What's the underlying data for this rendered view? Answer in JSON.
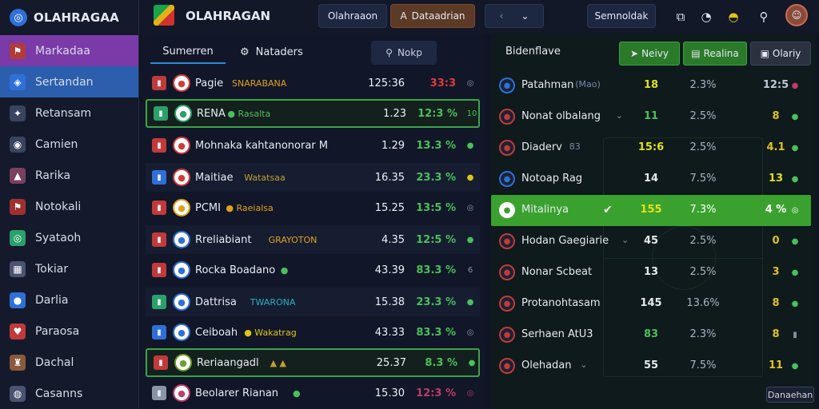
{
  "sidebar": {
    "brand": "OLAHRAGAA",
    "items": [
      {
        "label": "Markadaa",
        "icon": "flag-icon",
        "glyph": "⚑",
        "color": "#b33a3a"
      },
      {
        "label": "Sertandan",
        "icon": "shield-icon",
        "glyph": "◈",
        "color": "#2f6fd8"
      },
      {
        "label": "Retansam",
        "icon": "person-icon",
        "glyph": "✦",
        "color": "#3a4460"
      },
      {
        "label": "Camien",
        "icon": "ball-icon",
        "glyph": "◉",
        "color": "#3a4460"
      },
      {
        "label": "Rarika",
        "icon": "cap-icon",
        "glyph": "▲",
        "color": "#7a4060"
      },
      {
        "label": "Notokali",
        "icon": "flag-icon",
        "glyph": "⚑",
        "color": "#a0302f"
      },
      {
        "label": "Syataoh",
        "icon": "target-icon",
        "glyph": "◎",
        "color": "#2aa06a"
      },
      {
        "label": "Tokiar",
        "icon": "calendar-icon",
        "glyph": "▦",
        "color": "#4a5470"
      },
      {
        "label": "Darlia",
        "icon": "globe-icon",
        "glyph": "●",
        "color": "#2f6fd8"
      },
      {
        "label": "Paraosa",
        "icon": "heart-icon",
        "glyph": "♥",
        "color": "#c03a3a"
      },
      {
        "label": "Dachal",
        "icon": "trophy-icon",
        "glyph": "♜",
        "color": "#8a5a3a"
      },
      {
        "label": "Casanns",
        "icon": "coin-icon",
        "glyph": "◍",
        "color": "#4a5470"
      }
    ]
  },
  "topbar": {
    "title": "OLAHRAGAN",
    "btn_1": "Olahraaon",
    "btn_2_icon": "A",
    "btn_2": "Dataadrian",
    "btn_3": "Semnoldak"
  },
  "left_panel": {
    "tab_active": "Sumerren",
    "tab_2": "Nataders",
    "search_label": "Nokp",
    "rows": [
      {
        "flag": "#c03a3a",
        "badge": "#d23b3b",
        "name": "Pagie",
        "tag": "SNARABANA",
        "tag_color": "#e0a21a",
        "odds": "125:36",
        "pct": "33:3",
        "pct_color": "#e03a3a",
        "stat": "◎",
        "stat_color": "#8a94a6",
        "style": ""
      },
      {
        "flag": "#2aa06a",
        "badge": "#2aa06a",
        "name": "RENA",
        "tag": "● Rasalta",
        "tag_color": "#4ac05a",
        "odds": "1.23",
        "pct": "12:3 %",
        "pct_color": "#4ac05a",
        "stat": "10",
        "stat_color": "#4ac05a",
        "style": "hl"
      },
      {
        "flag": "#c03a3a",
        "badge": "#d23b3b",
        "name": "Mohnaka kahtanonorar M",
        "tag": "",
        "tag_color": "#fff",
        "odds": "1.29",
        "pct": "13.3 %",
        "pct_color": "#4ac05a",
        "stat": "●",
        "stat_color": "#4ac05a",
        "style": ""
      },
      {
        "flag": "#2f6fd8",
        "badge": "#d23b3b",
        "name": "Maitiae",
        "tag": "Watatsaa",
        "tag_color": "#c0a030",
        "odds": "16.35",
        "pct": "23.3 %",
        "pct_color": "#4ac05a",
        "stat": "●",
        "stat_color": "#e0c21a",
        "style": "alt"
      },
      {
        "flag": "#c03a3a",
        "badge": "#e0a21a",
        "name": "PCMI",
        "tag": "● Raeialsa",
        "tag_color": "#e0a21a",
        "odds": "15.25",
        "pct": "13:5 %",
        "pct_color": "#4ac05a",
        "stat": "◎",
        "stat_color": "#8a94a6",
        "style": ""
      },
      {
        "flag": "#c03a3a",
        "badge": "#2f6fd8",
        "name": "Rreliabiant",
        "tag": "GRAYOTON",
        "tag_color": "#e0a21a",
        "odds": "4.35",
        "pct": "12:5 %",
        "pct_color": "#4ac05a",
        "stat": "●",
        "stat_color": "#4ac05a",
        "style": "alt"
      },
      {
        "flag": "#c03a3a",
        "badge": "#2f6fd8",
        "name": "Rocka Boadano",
        "tag": "●",
        "tag_color": "#4ac05a",
        "odds": "43.39",
        "pct": "83.3 %",
        "pct_color": "#4ac05a",
        "stat": "6",
        "stat_color": "#8a94a6",
        "style": ""
      },
      {
        "flag": "#2aa06a",
        "badge": "#2f6fd8",
        "name": "Dattrisa",
        "tag": "TWARONA",
        "tag_color": "#2ab0c0",
        "odds": "15.38",
        "pct": "23.3 %",
        "pct_color": "#4ac05a",
        "stat": "●",
        "stat_color": "#4ac05a",
        "style": "alt"
      },
      {
        "flag": "#2f6fd8",
        "badge": "#2f6fd8",
        "name": "Ceiboah",
        "tag": "● Wakatrag",
        "tag_color": "#e0c21a",
        "odds": "43.33",
        "pct": "83.3 %",
        "pct_color": "#4ac05a",
        "stat": "◎",
        "stat_color": "#8a94a6",
        "style": ""
      },
      {
        "flag": "#c03a3a",
        "badge": "#6aa02a",
        "name": "Reriaangadl",
        "tag": "▲ ▲",
        "tag_color": "#c0a030",
        "odds": "25.37",
        "pct": "8.3 %",
        "pct_color": "#4ac05a",
        "stat": "●",
        "stat_color": "#4ac05a",
        "style": "hl"
      },
      {
        "flag": "#8a94a6",
        "badge": "#c03a6a",
        "name": "Beolarer Rianan",
        "tag": "●",
        "tag_color": "#4ac05a",
        "odds": "15.30",
        "pct": "12:3 %",
        "pct_color": "#c03a6a",
        "stat": "◎",
        "stat_color": "#c03a6a",
        "style": ""
      }
    ]
  },
  "right_panel": {
    "title": "Bidenflave",
    "btn_1": "Neivy",
    "btn_2": "Realina",
    "btn_3": "Olariy",
    "rows": [
      {
        "icon": "#2f6fd8",
        "name": "Patahman",
        "sub": "(Mao)",
        "v1": "18",
        "v1_color": "#e0e21a",
        "v2": "2.3%",
        "v3": "12:5",
        "v3_color": "#c0c8d4",
        "st": "●",
        "st_color": "#c03a6a",
        "chev": false,
        "sel": false
      },
      {
        "icon": "#c03a3a",
        "name": "Nonat olbalang",
        "sub": "",
        "v1": "11",
        "v1_color": "#4ac05a",
        "v2": "2.5%",
        "v3": "8",
        "v3_color": "#e0c21a",
        "st": "●",
        "st_color": "#4ac05a",
        "chev": true,
        "sel": false
      },
      {
        "icon": "#c03a3a",
        "name": "Diaderv",
        "sub": "83",
        "v1": "15:6",
        "v1_color": "#e0e21a",
        "v2": "2.5%",
        "v3": "4.1",
        "v3_color": "#e0c21a",
        "st": "●",
        "st_color": "#4ac05a",
        "chev": false,
        "sel": false
      },
      {
        "icon": "#2f6fd8",
        "name": "Notoap Rag",
        "sub": "",
        "v1": "14",
        "v1_color": "#e6eaf0",
        "v2": "7.5%",
        "v3": "13",
        "v3_color": "#e0e21a",
        "st": "●",
        "st_color": "#4ac05a",
        "chev": false,
        "sel": false
      },
      {
        "icon": "#ffffff",
        "name": "Mitalinya",
        "sub": "",
        "v1": "155",
        "v1_color": "#e0e21a",
        "v2": "7.3%",
        "v3": "4 %",
        "v3_color": "#ffffff",
        "st": "◎",
        "st_color": "#ffffff",
        "chev": false,
        "sel": true
      },
      {
        "icon": "#c03a3a",
        "name": "Hodan Gaegiarie",
        "sub": "",
        "v1": "45",
        "v1_color": "#e6eaf0",
        "v2": "2.5%",
        "v3": "0",
        "v3_color": "#e0c21a",
        "st": "●",
        "st_color": "#4ac05a",
        "chev": true,
        "sel": false
      },
      {
        "icon": "#c03a3a",
        "name": "Nonar Scbeat",
        "sub": "",
        "v1": "13",
        "v1_color": "#e6eaf0",
        "v2": "2.5%",
        "v3": "3",
        "v3_color": "#e0c21a",
        "st": "●",
        "st_color": "#4ac05a",
        "chev": false,
        "sel": false
      },
      {
        "icon": "#c03a3a",
        "name": "Protanohtasam",
        "sub": "",
        "v1": "145",
        "v1_color": "#e6eaf0",
        "v2": "13.6%",
        "v3": "8",
        "v3_color": "#e0c21a",
        "st": "●",
        "st_color": "#4ac05a",
        "chev": false,
        "sel": false
      },
      {
        "icon": "#c03a3a",
        "name": "Serhaen AtU3",
        "sub": "",
        "v1": "83",
        "v1_color": "#4ac05a",
        "v2": "2.3%",
        "v3": "8",
        "v3_color": "#e0c21a",
        "st": "▮",
        "st_color": "#8a94a6",
        "chev": false,
        "sel": false
      },
      {
        "icon": "#c03a3a",
        "name": "Olehadan",
        "sub": "",
        "v1": "55",
        "v1_color": "#e6eaf0",
        "v2": "7.5%",
        "v3": "11",
        "v3_color": "#e0c21a",
        "st": "●",
        "st_color": "#4ac05a",
        "chev": true,
        "sel": false
      }
    ],
    "corner_btn": "Danaehan"
  }
}
